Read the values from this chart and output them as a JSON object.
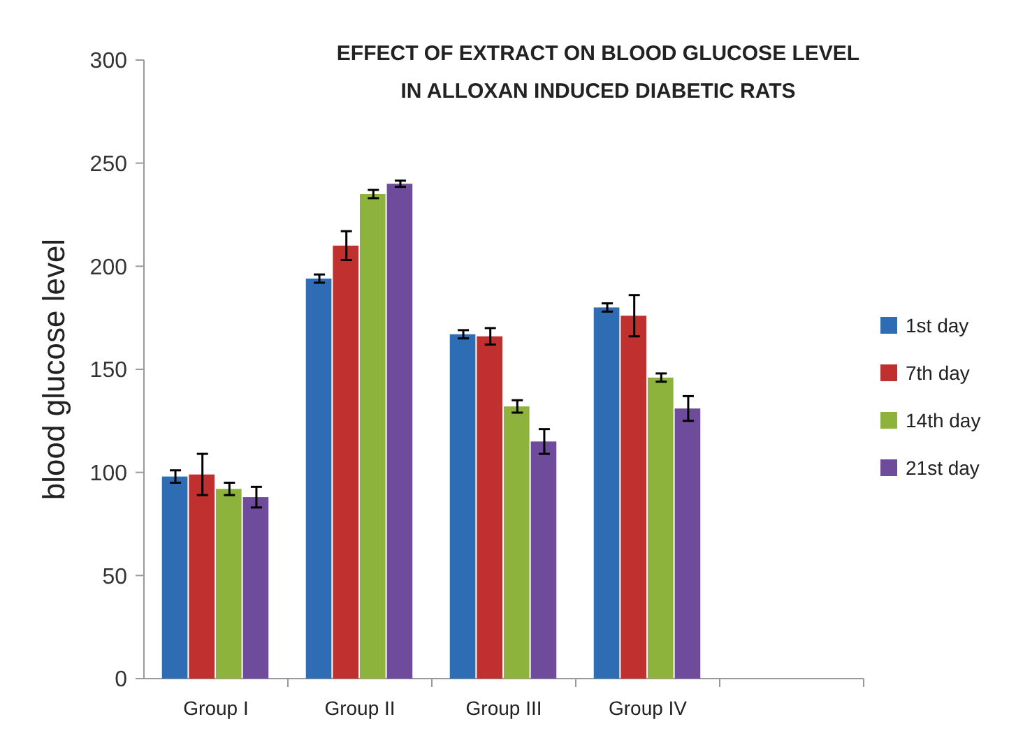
{
  "chart_data": {
    "type": "bar",
    "title": "EFFECT OF EXTRACT ON BLOOD GLUCOSE LEVEL IN ALLOXAN INDUCED DIABETIC RATS",
    "ylabel": "blood glucose level",
    "categories": [
      "Group I",
      "Group II",
      "Group III",
      "Group IV",
      null
    ],
    "series": [
      {
        "name": "1st day",
        "color": "#2e6db4",
        "values": [
          98,
          194,
          167,
          180,
          null
        ],
        "errors": [
          3,
          2,
          2,
          2,
          null
        ]
      },
      {
        "name": "7th day",
        "color": "#c0302f",
        "values": [
          99,
          210,
          166,
          176,
          null
        ],
        "errors": [
          10,
          7,
          4,
          10,
          null
        ]
      },
      {
        "name": "14th day",
        "color": "#8db33c",
        "values": [
          92,
          235,
          132,
          146,
          null
        ],
        "errors": [
          3,
          2,
          3,
          2,
          null
        ]
      },
      {
        "name": "21st day",
        "color": "#6f4b9b",
        "values": [
          88,
          240,
          115,
          131,
          null
        ],
        "errors": [
          5,
          1.5,
          6,
          6,
          null
        ]
      }
    ],
    "ylim": [
      0,
      300
    ],
    "yticks": [
      0,
      50,
      100,
      150,
      200,
      250,
      300
    ],
    "grid": false,
    "legend": "right"
  }
}
